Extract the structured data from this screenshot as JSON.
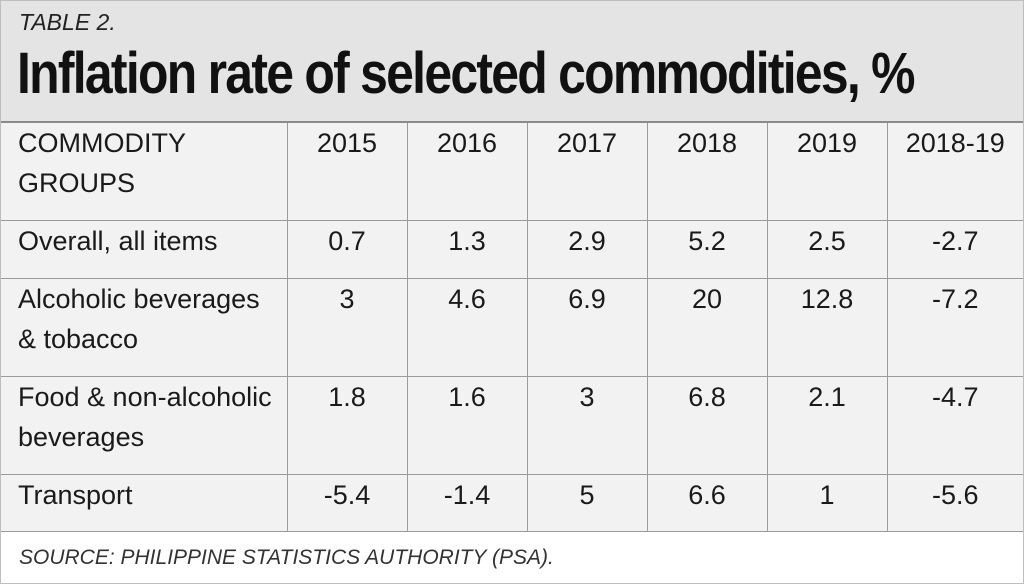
{
  "header": {
    "kicker": "TABLE 2.",
    "title": "Inflation rate of selected commodities, %"
  },
  "chart_data": {
    "type": "table",
    "title": "Inflation rate of selected commodities, %",
    "columns": [
      "COMMODITY GROUPS",
      "2015",
      "2016",
      "2017",
      "2018",
      "2019",
      "2018-19"
    ],
    "rows": [
      [
        "Overall, all items",
        "0.7",
        "1.3",
        "2.9",
        "5.2",
        "2.5",
        "-2.7"
      ],
      [
        "Alcoholic beverages & tobacco",
        "3",
        "4.6",
        "6.9",
        "20",
        "12.8",
        "-7.2"
      ],
      [
        "Food & non-alcoholic beverages",
        "1.8",
        "1.6",
        "3",
        "6.8",
        "2.1",
        "-4.7"
      ],
      [
        "Transport",
        "-5.4",
        "-1.4",
        "5",
        "6.6",
        "1",
        "-5.6"
      ]
    ]
  },
  "footer": {
    "source": "SOURCE: PHILIPPINE STATISTICS AUTHORITY (PSA)."
  },
  "colors": {
    "header_bg": "#e4e4e4",
    "table_bg": "#f2f2f2",
    "grid": "#9a9a9a",
    "text": "#1a1a1a"
  }
}
